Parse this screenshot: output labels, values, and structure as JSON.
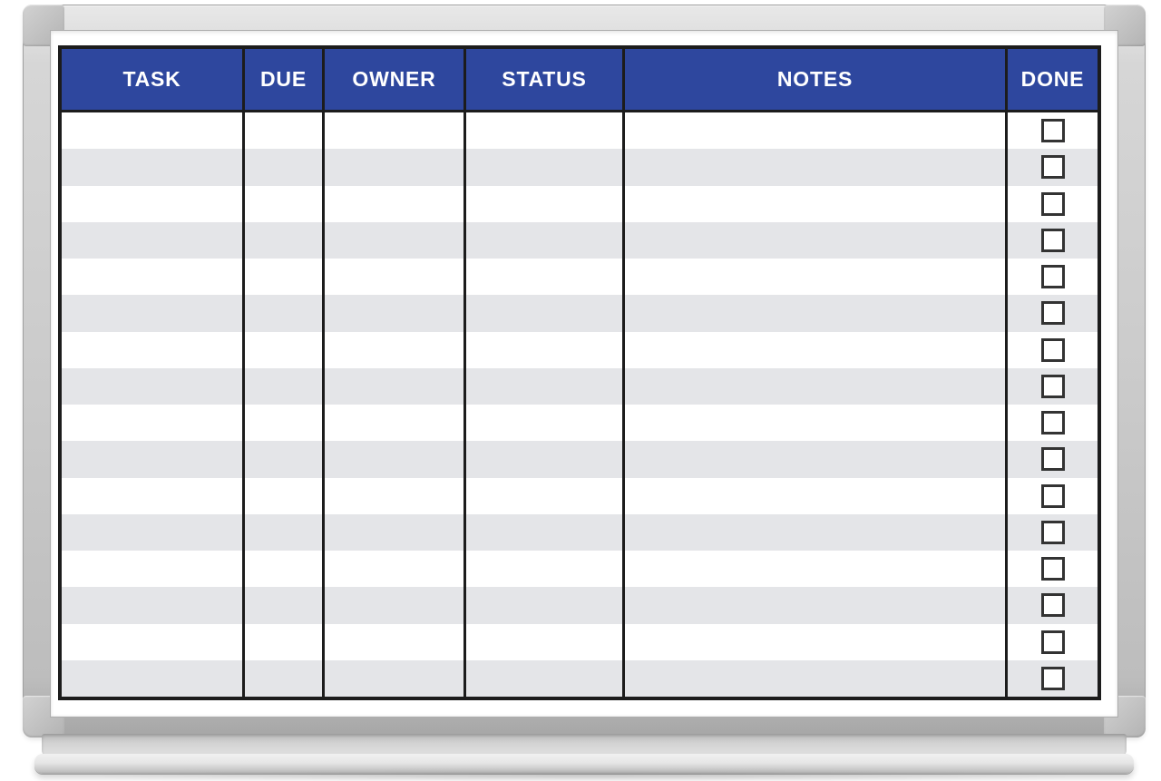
{
  "board": {
    "description": "Magnetic dry-erase task tracking whiteboard with aluminum frame and marker tray"
  },
  "colors": {
    "header_blue": "#2e479e",
    "header_text": "#ffffff",
    "grid_line": "#1c1c1c",
    "stripe_gray": "#e4e5e8",
    "row_white": "#ffffff",
    "checkbox_border": "#333333",
    "frame_silver": "#cbcbcb",
    "tray_silver": "#d3d3d3",
    "page_bg": "#ffffff"
  },
  "table": {
    "columns": [
      {
        "key": "task",
        "label": "TASK"
      },
      {
        "key": "due",
        "label": "DUE"
      },
      {
        "key": "owner",
        "label": "OWNER"
      },
      {
        "key": "status",
        "label": "STATUS"
      },
      {
        "key": "notes",
        "label": "NOTES"
      },
      {
        "key": "done",
        "label": "DONE"
      }
    ],
    "rows": [
      {
        "task": "",
        "due": "",
        "owner": "",
        "status": "",
        "notes": "",
        "done": false
      },
      {
        "task": "",
        "due": "",
        "owner": "",
        "status": "",
        "notes": "",
        "done": false
      },
      {
        "task": "",
        "due": "",
        "owner": "",
        "status": "",
        "notes": "",
        "done": false
      },
      {
        "task": "",
        "due": "",
        "owner": "",
        "status": "",
        "notes": "",
        "done": false
      },
      {
        "task": "",
        "due": "",
        "owner": "",
        "status": "",
        "notes": "",
        "done": false
      },
      {
        "task": "",
        "due": "",
        "owner": "",
        "status": "",
        "notes": "",
        "done": false
      },
      {
        "task": "",
        "due": "",
        "owner": "",
        "status": "",
        "notes": "",
        "done": false
      },
      {
        "task": "",
        "due": "",
        "owner": "",
        "status": "",
        "notes": "",
        "done": false
      },
      {
        "task": "",
        "due": "",
        "owner": "",
        "status": "",
        "notes": "",
        "done": false
      },
      {
        "task": "",
        "due": "",
        "owner": "",
        "status": "",
        "notes": "",
        "done": false
      },
      {
        "task": "",
        "due": "",
        "owner": "",
        "status": "",
        "notes": "",
        "done": false
      },
      {
        "task": "",
        "due": "",
        "owner": "",
        "status": "",
        "notes": "",
        "done": false
      },
      {
        "task": "",
        "due": "",
        "owner": "",
        "status": "",
        "notes": "",
        "done": false
      },
      {
        "task": "",
        "due": "",
        "owner": "",
        "status": "",
        "notes": "",
        "done": false
      },
      {
        "task": "",
        "due": "",
        "owner": "",
        "status": "",
        "notes": "",
        "done": false
      },
      {
        "task": "",
        "due": "",
        "owner": "",
        "status": "",
        "notes": "",
        "done": false
      }
    ],
    "checkbox_checked_glyph": "✓"
  }
}
